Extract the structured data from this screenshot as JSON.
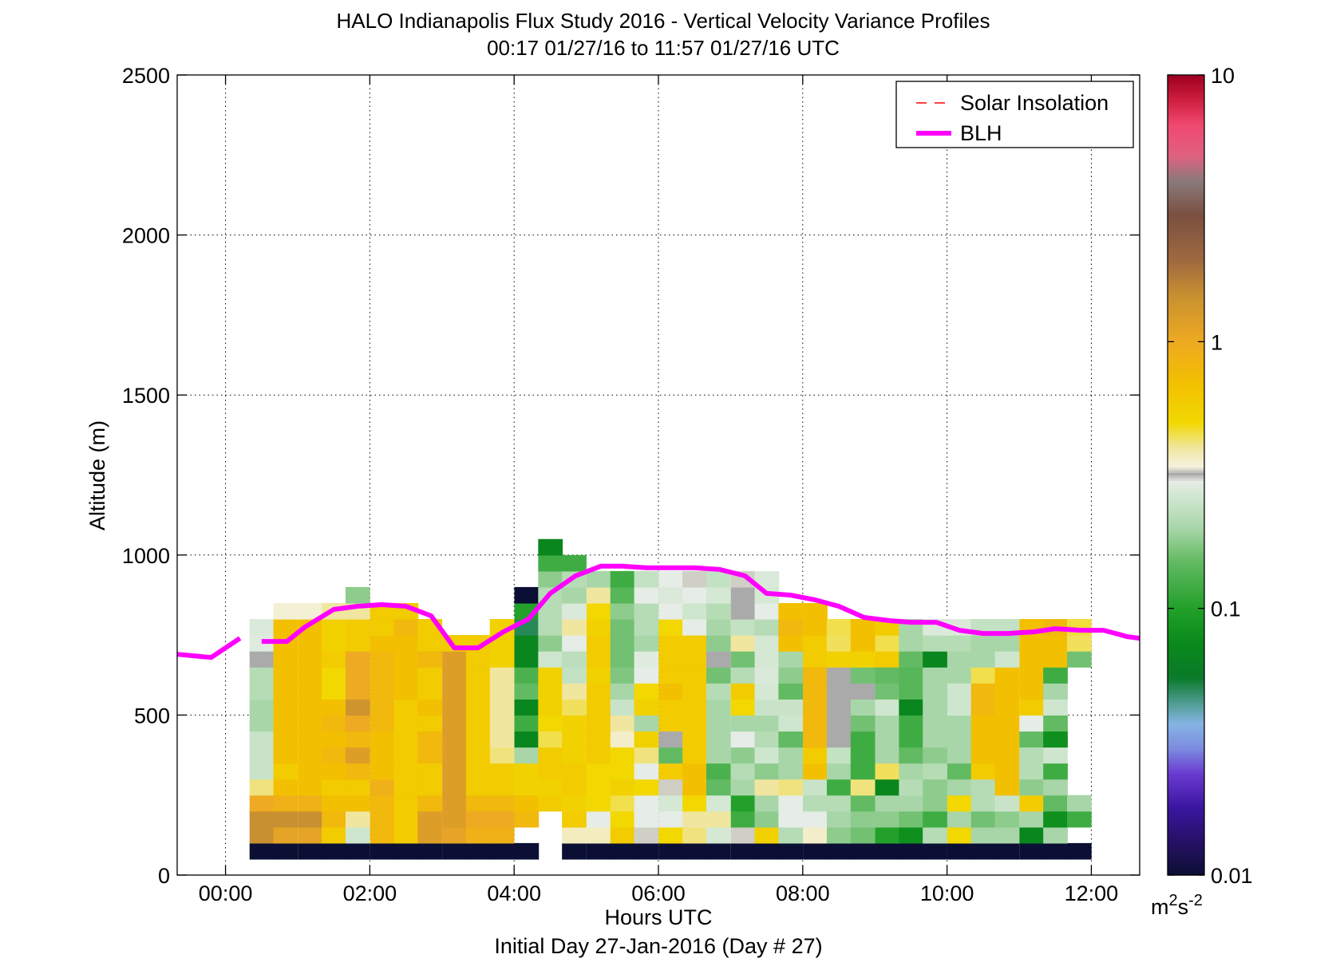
{
  "chart_data": {
    "type": "heatmap",
    "title": "HALO Indianapolis Flux Study 2016 - Vertical Velocity Variance Profiles",
    "subtitle": "00:17 01/27/16 to 11:57 01/27/16  UTC",
    "xlabel": "Hours UTC",
    "xlabel_sub": "Initial Day 27-Jan-2016 (Day # 27)",
    "ylabel": "Altitude (m)",
    "xlim": [
      -0.67,
      12.67
    ],
    "ylim": [
      0,
      2500
    ],
    "x_ticks": [
      {
        "value": 0,
        "label": "00:00"
      },
      {
        "value": 2,
        "label": "02:00"
      },
      {
        "value": 4,
        "label": "04:00"
      },
      {
        "value": 6,
        "label": "06:00"
      },
      {
        "value": 8,
        "label": "08:00"
      },
      {
        "value": 10,
        "label": "10:00"
      },
      {
        "value": 12,
        "label": "12:00"
      }
    ],
    "y_ticks": [
      {
        "value": 0,
        "label": "0"
      },
      {
        "value": 500,
        "label": "500"
      },
      {
        "value": 1000,
        "label": "1000"
      },
      {
        "value": 1500,
        "label": "1500"
      },
      {
        "value": 2000,
        "label": "2000"
      },
      {
        "value": 2500,
        "label": "2500"
      }
    ],
    "grid": true,
    "legend_position": "top-right",
    "legend": [
      {
        "name": "Solar Insolation",
        "style": "dashed",
        "color": "#ff0000"
      },
      {
        "name": "BLH",
        "style": "solid",
        "color": "#ff00ff"
      }
    ],
    "colorbar": {
      "scale": "log",
      "range": [
        0.01,
        10
      ],
      "ticks": [
        {
          "value": 0.01,
          "label": "0.01"
        },
        {
          "value": 0.1,
          "label": "0.1"
        },
        {
          "value": 1,
          "label": "1"
        },
        {
          "value": 10,
          "label": "10"
        }
      ],
      "unit_base": "m",
      "unit_sup1": "2",
      "unit_mid": "s",
      "unit_sup2": "-2",
      "stops": [
        {
          "v": 0.01,
          "c": "#0a0f33"
        },
        {
          "v": 0.013,
          "c": "#241060"
        },
        {
          "v": 0.018,
          "c": "#3a16a0"
        },
        {
          "v": 0.024,
          "c": "#6a3ad0"
        },
        {
          "v": 0.03,
          "c": "#7c8ce0"
        },
        {
          "v": 0.037,
          "c": "#86b4e4"
        },
        {
          "v": 0.045,
          "c": "#4a9a8a"
        },
        {
          "v": 0.055,
          "c": "#0a7a2a"
        },
        {
          "v": 0.075,
          "c": "#0a8a1a"
        },
        {
          "v": 0.1,
          "c": "#22a02a"
        },
        {
          "v": 0.15,
          "c": "#62ba62"
        },
        {
          "v": 0.2,
          "c": "#a8d6a8"
        },
        {
          "v": 0.27,
          "c": "#d4e8d4"
        },
        {
          "v": 0.3,
          "c": "#e6ece6"
        },
        {
          "v": 0.32,
          "c": "#aaaaaa"
        },
        {
          "v": 0.34,
          "c": "#f4f2e0"
        },
        {
          "v": 0.4,
          "c": "#f0e6a0"
        },
        {
          "v": 0.5,
          "c": "#f2d800"
        },
        {
          "v": 0.7,
          "c": "#f2c000"
        },
        {
          "v": 1.0,
          "c": "#eeaa22"
        },
        {
          "v": 1.5,
          "c": "#c89030"
        },
        {
          "v": 2.0,
          "c": "#a06a40"
        },
        {
          "v": 3.0,
          "c": "#7a5040"
        },
        {
          "v": 4.0,
          "c": "#8a7a7a"
        },
        {
          "v": 5.0,
          "c": "#e06080"
        },
        {
          "v": 6.5,
          "c": "#f04a70"
        },
        {
          "v": 8.0,
          "c": "#d02040"
        },
        {
          "v": 10,
          "c": "#a00020"
        }
      ]
    },
    "heatmap": {
      "x_centers": [
        0.5,
        0.83,
        1.17,
        1.5,
        1.83,
        2.17,
        2.5,
        2.83,
        3.17,
        3.5,
        3.83,
        4.17,
        4.5,
        4.83,
        5.17,
        5.5,
        5.83,
        6.17,
        6.5,
        6.83,
        7.17,
        7.5,
        7.83,
        8.17,
        8.5,
        8.83,
        9.17,
        9.5,
        9.83,
        10.17,
        10.5,
        10.83,
        11.17,
        11.5,
        11.83
      ],
      "y_centers": [
        75,
        125,
        175,
        225,
        275,
        325,
        375,
        425,
        475,
        525,
        575,
        625,
        675,
        725,
        775,
        825,
        875,
        925,
        975,
        1025
      ],
      "values": [
        [
          0.01,
          0.01,
          0.01,
          0.01,
          0.01,
          0.01,
          0.01,
          0.01,
          0.01,
          0.01,
          0.01,
          0.01,
          null,
          0.01,
          0.01,
          0.01,
          0.01,
          0.01,
          0.01,
          0.01,
          0.01,
          0.01,
          0.01,
          0.01,
          0.01,
          0.01,
          0.01,
          0.01,
          0.01,
          0.01,
          0.01,
          0.01,
          0.01,
          0.01,
          0.01
        ],
        [
          1.5,
          1.1,
          1.1,
          0.6,
          0.26,
          0.8,
          0.6,
          1.2,
          1.1,
          0.9,
          0.9,
          null,
          null,
          0.37,
          0.37,
          0.6,
          0.33,
          0.5,
          0.42,
          0.27,
          0.33,
          0.55,
          0.22,
          0.36,
          0.18,
          0.16,
          0.1,
          0.08,
          0.22,
          0.5,
          0.2,
          0.2,
          0.07,
          0.2,
          null
        ],
        [
          1.5,
          1.5,
          1.5,
          0.8,
          0.4,
          0.8,
          0.6,
          1.2,
          1.2,
          1.0,
          1.0,
          0.8,
          null,
          0.6,
          0.3,
          0.5,
          0.3,
          0.3,
          0.4,
          0.4,
          0.12,
          0.18,
          0.3,
          0.3,
          0.2,
          0.18,
          0.18,
          0.16,
          0.12,
          0.2,
          0.16,
          0.18,
          0.2,
          0.08,
          0.12
        ],
        [
          1.0,
          0.9,
          0.9,
          0.7,
          0.7,
          0.8,
          0.6,
          0.8,
          1.2,
          0.8,
          0.8,
          0.7,
          0.6,
          0.55,
          0.5,
          0.45,
          0.3,
          0.27,
          0.5,
          0.27,
          0.1,
          0.2,
          0.3,
          0.22,
          0.22,
          0.15,
          0.2,
          0.2,
          0.18,
          0.5,
          0.22,
          0.25,
          0.6,
          0.15,
          0.2
        ],
        [
          0.42,
          0.7,
          0.7,
          0.6,
          0.6,
          0.9,
          0.6,
          0.6,
          1.2,
          0.6,
          0.6,
          0.55,
          0.55,
          0.6,
          0.5,
          0.55,
          0.5,
          0.33,
          0.7,
          0.15,
          0.2,
          0.4,
          0.42,
          0.25,
          0.12,
          0.42,
          0.07,
          0.22,
          0.18,
          0.2,
          0.22,
          0.7,
          0.18,
          0.2,
          null
        ],
        [
          0.25,
          0.6,
          0.7,
          0.7,
          0.8,
          0.7,
          0.6,
          0.6,
          1.2,
          0.6,
          0.6,
          0.55,
          0.6,
          0.6,
          0.5,
          0.5,
          0.3,
          0.6,
          0.7,
          0.13,
          0.22,
          0.18,
          0.2,
          0.7,
          0.2,
          0.12,
          0.44,
          0.2,
          0.22,
          0.15,
          0.6,
          0.7,
          0.22,
          0.12,
          null
        ],
        [
          0.25,
          0.7,
          0.7,
          0.8,
          1.2,
          0.7,
          0.6,
          0.8,
          1.2,
          0.6,
          0.42,
          0.2,
          0.6,
          0.55,
          0.6,
          0.5,
          0.42,
          0.15,
          0.6,
          0.2,
          0.18,
          0.26,
          0.2,
          0.6,
          0.24,
          0.12,
          0.2,
          0.15,
          0.18,
          0.2,
          0.7,
          0.7,
          0.22,
          0.26,
          null
        ],
        [
          0.25,
          0.7,
          0.7,
          0.7,
          0.8,
          0.7,
          0.6,
          0.8,
          1.2,
          0.6,
          0.4,
          0.07,
          0.45,
          0.55,
          0.6,
          0.36,
          0.55,
          0.32,
          0.6,
          0.2,
          0.3,
          0.22,
          0.15,
          0.8,
          0.32,
          0.12,
          0.2,
          0.12,
          0.2,
          0.2,
          0.7,
          0.7,
          0.15,
          0.08,
          null
        ],
        [
          0.2,
          0.7,
          0.7,
          0.8,
          1.0,
          0.8,
          0.6,
          0.6,
          1.2,
          0.6,
          0.4,
          0.12,
          0.5,
          0.55,
          0.6,
          0.4,
          0.2,
          0.6,
          0.6,
          0.2,
          0.2,
          0.2,
          0.26,
          0.8,
          0.32,
          0.16,
          0.2,
          0.12,
          0.2,
          0.2,
          0.7,
          0.7,
          0.3,
          0.15,
          null
        ],
        [
          0.2,
          0.7,
          0.7,
          0.7,
          1.4,
          0.8,
          0.6,
          0.7,
          1.2,
          0.6,
          0.4,
          0.07,
          0.55,
          0.44,
          0.6,
          0.25,
          0.55,
          0.6,
          0.6,
          0.2,
          0.5,
          0.25,
          0.25,
          0.8,
          0.32,
          0.2,
          0.26,
          0.07,
          0.2,
          0.26,
          0.8,
          0.7,
          0.6,
          0.26,
          null
        ],
        [
          0.22,
          0.7,
          0.7,
          0.5,
          1.0,
          0.8,
          0.7,
          0.6,
          1.2,
          0.6,
          0.4,
          0.15,
          0.55,
          0.4,
          0.6,
          0.2,
          0.5,
          0.7,
          0.6,
          0.22,
          0.6,
          0.27,
          0.15,
          0.8,
          0.32,
          0.32,
          0.16,
          0.14,
          0.2,
          0.26,
          0.8,
          0.7,
          0.7,
          0.2,
          null
        ],
        [
          0.22,
          0.7,
          0.7,
          0.5,
          1.0,
          0.8,
          0.7,
          0.6,
          1.2,
          0.6,
          0.4,
          0.13,
          0.55,
          0.24,
          0.55,
          0.17,
          0.3,
          0.6,
          0.6,
          0.16,
          0.22,
          0.28,
          0.18,
          0.8,
          0.32,
          0.16,
          0.15,
          0.14,
          0.2,
          0.2,
          0.45,
          0.7,
          0.7,
          0.12,
          null
        ],
        [
          0.32,
          0.7,
          0.7,
          0.6,
          1.0,
          0.8,
          0.7,
          0.8,
          1.2,
          0.6,
          0.55,
          0.07,
          0.26,
          0.23,
          0.6,
          0.16,
          0.29,
          0.6,
          0.6,
          0.32,
          0.16,
          0.27,
          0.2,
          0.6,
          0.55,
          0.55,
          0.6,
          0.15,
          0.07,
          0.2,
          0.2,
          0.26,
          0.7,
          0.7,
          0.16
        ],
        [
          0.29,
          0.7,
          0.7,
          0.55,
          0.6,
          0.7,
          0.7,
          0.6,
          0.6,
          0.6,
          0.55,
          0.07,
          0.18,
          0.3,
          0.6,
          0.16,
          0.2,
          0.6,
          0.6,
          0.18,
          0.4,
          0.27,
          0.7,
          0.6,
          0.44,
          0.7,
          0.45,
          0.2,
          0.22,
          0.22,
          0.2,
          0.2,
          0.7,
          0.7,
          0.44
        ],
        [
          0.28,
          0.7,
          0.7,
          0.55,
          0.6,
          0.6,
          0.8,
          0.6,
          null,
          null,
          0.55,
          0.05,
          0.22,
          0.4,
          0.55,
          0.16,
          0.22,
          0.5,
          0.3,
          0.2,
          0.24,
          0.22,
          0.8,
          0.7,
          0.45,
          0.7,
          0.6,
          0.2,
          0.28,
          0.28,
          0.24,
          0.24,
          0.7,
          0.8,
          0.46
        ],
        [
          null,
          0.35,
          0.35,
          0.4,
          0.4,
          0.6,
          0.6,
          null,
          null,
          null,
          null,
          0.1,
          0.22,
          0.28,
          0.5,
          0.18,
          0.22,
          0.3,
          0.26,
          0.22,
          0.32,
          0.3,
          0.7,
          0.7,
          null,
          null,
          null,
          null,
          null,
          null,
          null,
          null,
          null,
          null,
          null
        ],
        [
          null,
          null,
          null,
          null,
          0.18,
          null,
          null,
          null,
          null,
          null,
          null,
          0.01,
          0.22,
          0.2,
          0.4,
          0.14,
          0.3,
          0.28,
          0.3,
          0.27,
          0.32,
          0.27,
          null,
          null,
          null,
          null,
          null,
          null,
          null,
          null,
          null,
          null,
          null,
          null,
          null
        ],
        [
          null,
          null,
          null,
          null,
          null,
          null,
          null,
          null,
          null,
          null,
          null,
          null,
          0.18,
          0.22,
          0.2,
          0.12,
          0.24,
          0.3,
          0.33,
          0.24,
          0.33,
          0.28,
          null,
          null,
          null,
          null,
          null,
          null,
          null,
          null,
          null,
          null,
          null,
          null,
          null
        ],
        [
          null,
          null,
          null,
          null,
          null,
          null,
          null,
          null,
          null,
          null,
          null,
          null,
          0.12,
          0.12,
          null,
          null,
          null,
          null,
          null,
          null,
          null,
          null,
          null,
          null,
          null,
          null,
          null,
          null,
          null,
          null,
          null,
          null,
          null,
          null,
          null
        ],
        [
          null,
          null,
          null,
          null,
          null,
          null,
          null,
          null,
          null,
          null,
          null,
          null,
          0.07,
          null,
          null,
          null,
          null,
          null,
          null,
          null,
          null,
          null,
          null,
          null,
          null,
          null,
          null,
          null,
          null,
          null,
          null,
          null,
          null,
          null,
          null
        ]
      ]
    },
    "blh_series": {
      "name": "BLH",
      "segments": [
        [
          [
            -0.67,
            690
          ],
          [
            -0.2,
            680
          ],
          [
            0.2,
            740
          ]
        ],
        [
          [
            0.5,
            730
          ],
          [
            0.85,
            730
          ],
          [
            1.1,
            775
          ],
          [
            1.5,
            830
          ],
          [
            1.83,
            840
          ],
          [
            2.17,
            845
          ],
          [
            2.5,
            840
          ],
          [
            2.85,
            810
          ],
          [
            3.17,
            710
          ],
          [
            3.5,
            710
          ],
          [
            3.85,
            760
          ],
          [
            4.2,
            800
          ],
          [
            4.5,
            880
          ],
          [
            4.85,
            935
          ],
          [
            5.2,
            965
          ],
          [
            5.5,
            965
          ],
          [
            5.83,
            960
          ],
          [
            6.17,
            960
          ],
          [
            6.5,
            960
          ],
          [
            6.85,
            955
          ],
          [
            7.2,
            935
          ],
          [
            7.5,
            880
          ],
          [
            7.83,
            875
          ],
          [
            8.17,
            860
          ],
          [
            8.5,
            840
          ],
          [
            8.85,
            805
          ],
          [
            9.2,
            795
          ],
          [
            9.5,
            790
          ],
          [
            9.85,
            790
          ],
          [
            10.17,
            765
          ],
          [
            10.5,
            755
          ],
          [
            10.85,
            755
          ],
          [
            11.2,
            760
          ],
          [
            11.5,
            770
          ],
          [
            11.85,
            765
          ],
          [
            12.17,
            765
          ],
          [
            12.5,
            745
          ],
          [
            12.67,
            740
          ]
        ]
      ]
    }
  }
}
